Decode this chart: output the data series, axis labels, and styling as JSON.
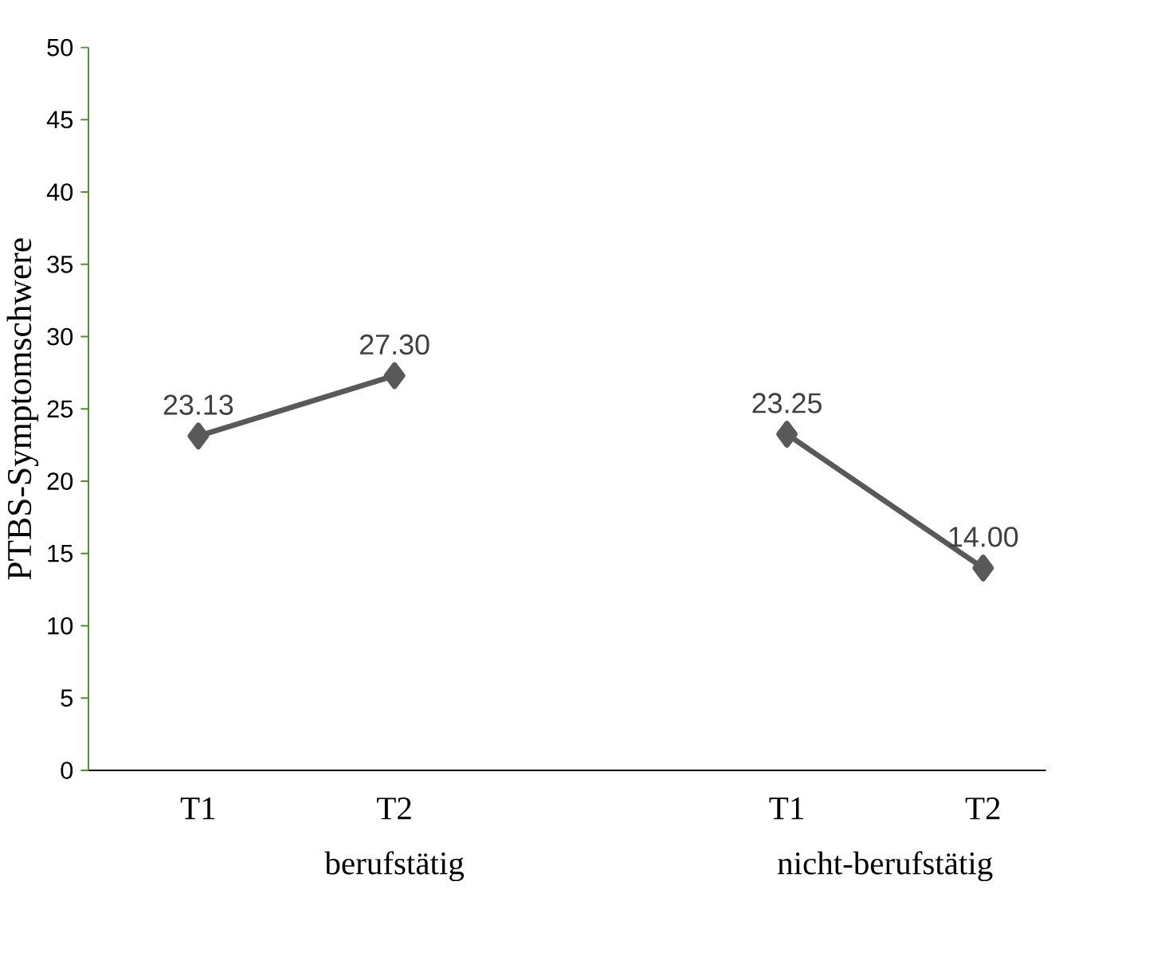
{
  "chart_data": {
    "type": "line",
    "ylabel": "PTBS-Symptomschwere",
    "categories": [
      "T1",
      "T2",
      null,
      "T1",
      "T2"
    ],
    "series": [
      {
        "color": "#595959",
        "values": [
          23.13,
          27.3,
          null,
          23.25,
          14.0
        ],
        "value_labels": [
          "23.13",
          "27.30",
          null,
          "23.25",
          "14.00"
        ]
      }
    ],
    "ylim": [
      0,
      50
    ],
    "yticks": [
      0,
      5,
      10,
      15,
      20,
      25,
      30,
      35,
      40,
      45,
      50
    ],
    "marker": "diamond",
    "line_style": "solid",
    "grid": false,
    "annotations": [
      "berufstätig",
      "nicht-berufstätig"
    ]
  }
}
